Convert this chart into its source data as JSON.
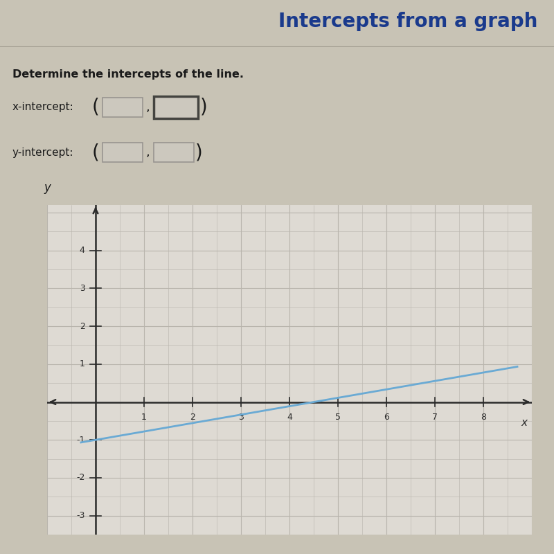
{
  "title": "Intercepts from a graph",
  "title_color": "#1a3a8c",
  "instruction": "Determine the intercepts of the line.",
  "x_intercept_label": "x-intercept:",
  "y_intercept_label": "y-intercept:",
  "bg_color": "#c8c3b5",
  "content_bg_color": "#d4cfc3",
  "graph_bg_color": "#dedad3",
  "grid_color": "#b8b4ac",
  "line_color": "#6aaad4",
  "line_x_start": -0.3,
  "line_y_start": -1.067,
  "line_x_end": 8.7,
  "line_y_end": 0.933,
  "x_min": -1,
  "x_max": 9,
  "y_min": -3.5,
  "y_max": 5.2,
  "x_ticks": [
    1,
    2,
    3,
    4,
    5,
    6,
    7,
    8
  ],
  "y_ticks": [
    -3,
    -2,
    -1,
    1,
    2,
    3,
    4
  ],
  "font_color": "#1a1a1a",
  "axis_color": "#2a2a2a",
  "box_face_color": "#ccc8be",
  "box_edge_light": "#999590",
  "box_edge_dark": "#444440",
  "title_fontsize": 20,
  "label_fontsize": 11,
  "tick_fontsize": 9
}
